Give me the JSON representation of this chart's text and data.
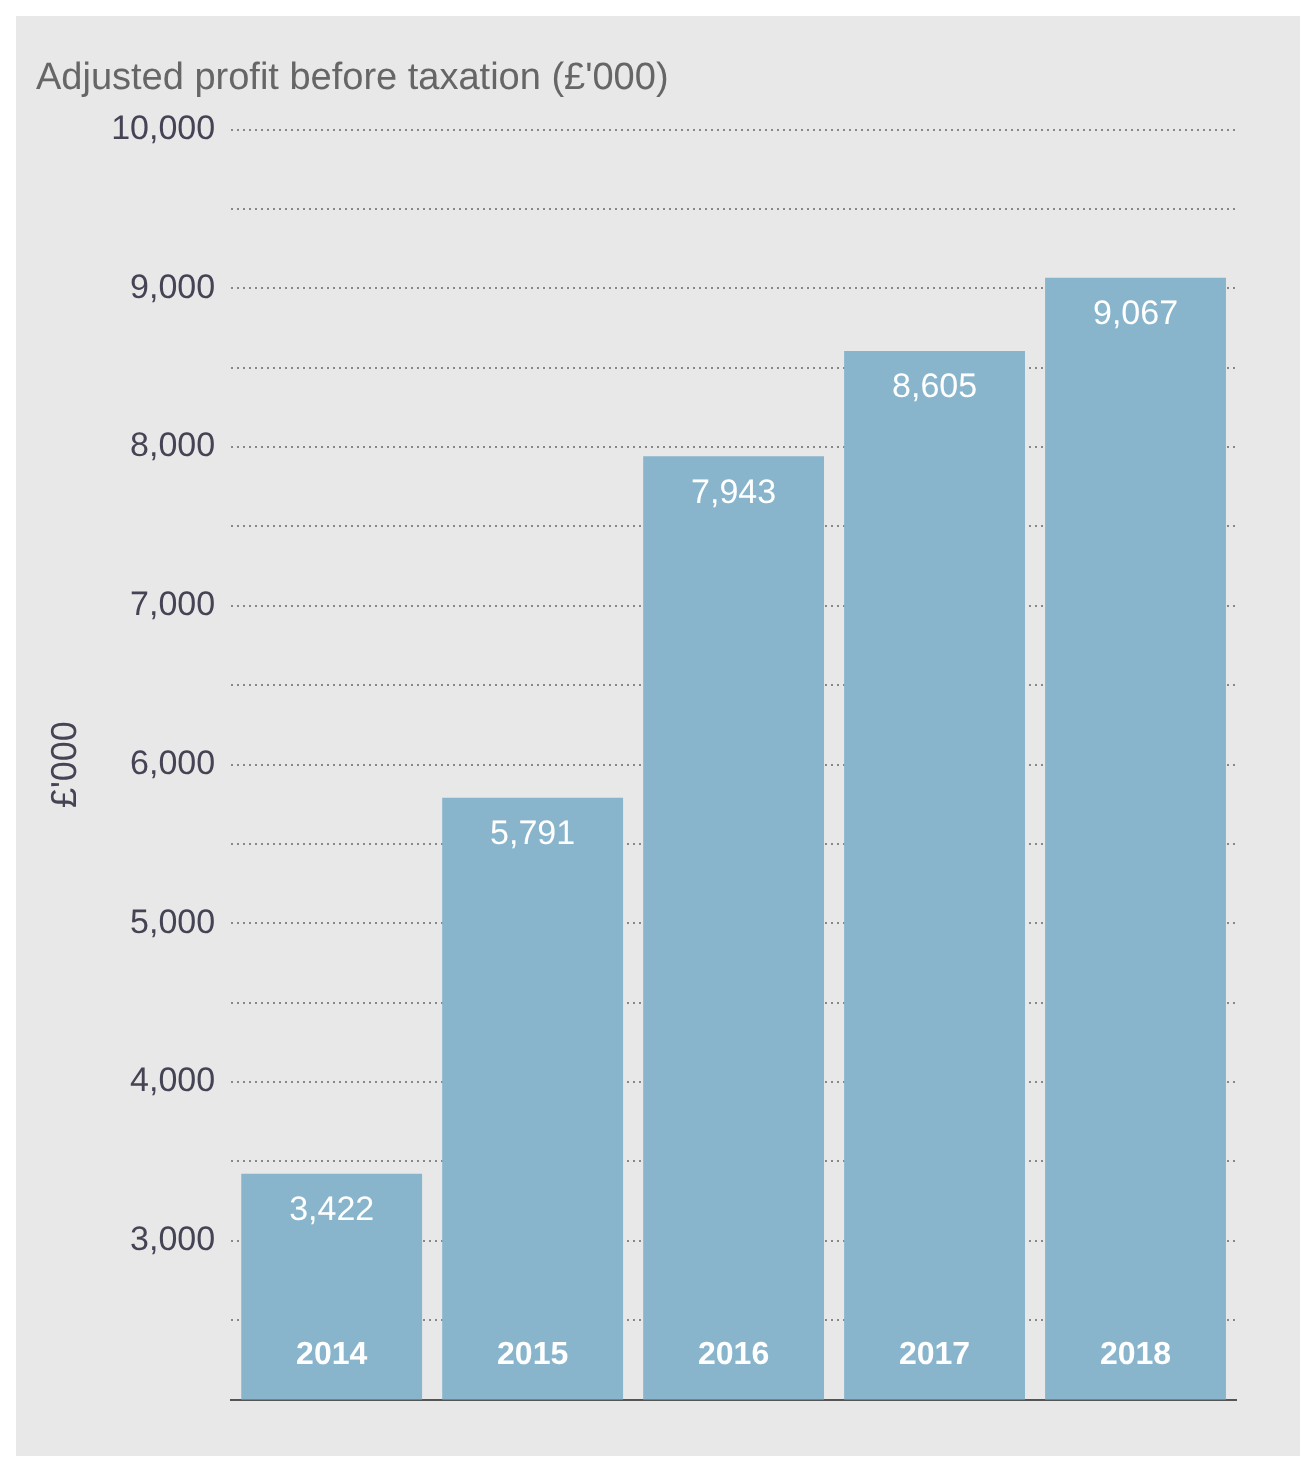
{
  "chart_data": {
    "type": "bar",
    "title": "Adjusted profit before taxation (£'000)",
    "ylabel": "£'000",
    "categories": [
      "2014",
      "2015",
      "2016",
      "2017",
      "2018"
    ],
    "values": [
      3422,
      5791,
      7943,
      8605,
      9067
    ],
    "color": "#88b5cc",
    "ylim": [
      2000,
      10000
    ],
    "yticks": [
      {
        "value": 2500,
        "label": null
      },
      {
        "value": 3000,
        "label": "3,000"
      },
      {
        "value": 3500,
        "label": null
      },
      {
        "value": 4000,
        "label": "4,000"
      },
      {
        "value": 4500,
        "label": null
      },
      {
        "value": 5000,
        "label": "5,000"
      },
      {
        "value": 5500,
        "label": null
      },
      {
        "value": 6000,
        "label": "6,000"
      },
      {
        "value": 6500,
        "label": null
      },
      {
        "value": 7000,
        "label": "7,000"
      },
      {
        "value": 7500,
        "label": null
      },
      {
        "value": 8000,
        "label": "8,000"
      },
      {
        "value": 8500,
        "label": null
      },
      {
        "value": 9000,
        "label": "9,000"
      },
      {
        "value": 9500,
        "label": null
      },
      {
        "value": 10000,
        "label": "10,000"
      }
    ],
    "value_labels": [
      "3,422",
      "5,791",
      "7,943",
      "8,605",
      "9,067"
    ],
    "grid": "y",
    "legend": false
  }
}
